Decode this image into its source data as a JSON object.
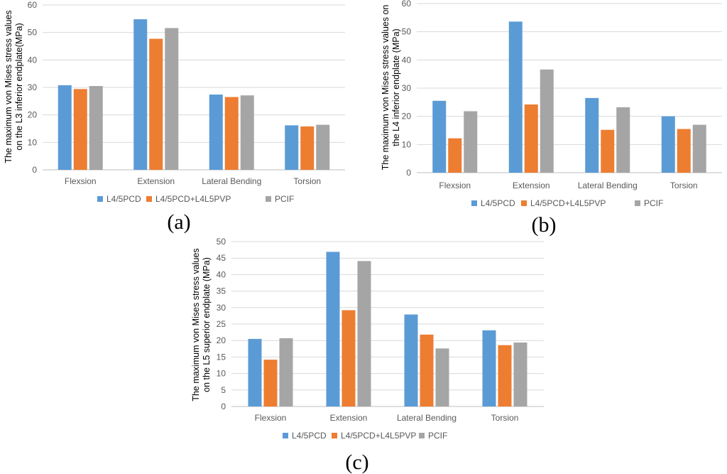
{
  "colors": {
    "L4/5PCD": "#5b9bd5",
    "L4/5PCD+L4L5PVP": "#ed7d31",
    "PCIF": "#a5a5a5",
    "grid": "#d9d9d9",
    "text": "#595959"
  },
  "chart_data": [
    {
      "type": "bar",
      "panel": "(a)",
      "ylabel_lines": [
        "The maximum von Mises stress values",
        "on the L3 inferior endplate(MPa)"
      ],
      "categories": [
        "Flexsion",
        "Extension",
        "Lateral Bending",
        "Torsion"
      ],
      "ylim": [
        0,
        60
      ],
      "yticks": [
        0,
        10,
        20,
        30,
        40,
        50,
        60
      ],
      "legend_position": "bottom",
      "series": [
        {
          "name": "L4/5PCD",
          "values": [
            30.8,
            54.8,
            27.4,
            16.2
          ]
        },
        {
          "name": "L4/5PCD+L4L5PVP",
          "values": [
            29.4,
            47.7,
            26.5,
            15.8
          ]
        },
        {
          "name": "PCIF",
          "values": [
            30.5,
            51.6,
            27.1,
            16.4
          ]
        }
      ]
    },
    {
      "type": "bar",
      "panel": "(b)",
      "ylabel_lines": [
        "The maximum von Mises stress values on",
        "the L4 inferior endplate (MPa)"
      ],
      "categories": [
        "Flexsion",
        "Extension",
        "Lateral Bending",
        "Torsion"
      ],
      "ylim": [
        0,
        60
      ],
      "yticks": [
        0,
        10,
        20,
        30,
        40,
        50,
        60
      ],
      "legend_position": "bottom",
      "series": [
        {
          "name": "L4/5PCD",
          "values": [
            25.5,
            53.6,
            26.5,
            20.0
          ]
        },
        {
          "name": "L4/5PCD+L4L5PVP",
          "values": [
            12.2,
            24.2,
            15.2,
            15.5
          ]
        },
        {
          "name": "PCIF",
          "values": [
            21.8,
            36.6,
            23.2,
            17.0
          ]
        }
      ]
    },
    {
      "type": "bar",
      "panel": "(c)",
      "ylabel_lines": [
        "The maximum von Mises stress values",
        "on the L5 superior endplate (MPa)"
      ],
      "categories": [
        "Flexsion",
        "Extension",
        "Lateral Bending",
        "Torsion"
      ],
      "ylim": [
        0,
        50
      ],
      "yticks": [
        0,
        5,
        10,
        15,
        20,
        25,
        30,
        35,
        40,
        45,
        50
      ],
      "legend_position": "bottom",
      "series": [
        {
          "name": "L4/5PCD",
          "values": [
            20.5,
            46.9,
            27.9,
            23.1
          ]
        },
        {
          "name": "L4/5PCD+L4L5PVP",
          "values": [
            14.2,
            29.2,
            21.8,
            18.6
          ]
        },
        {
          "name": "PCIF",
          "values": [
            20.7,
            44.1,
            17.6,
            19.4
          ]
        }
      ]
    }
  ]
}
